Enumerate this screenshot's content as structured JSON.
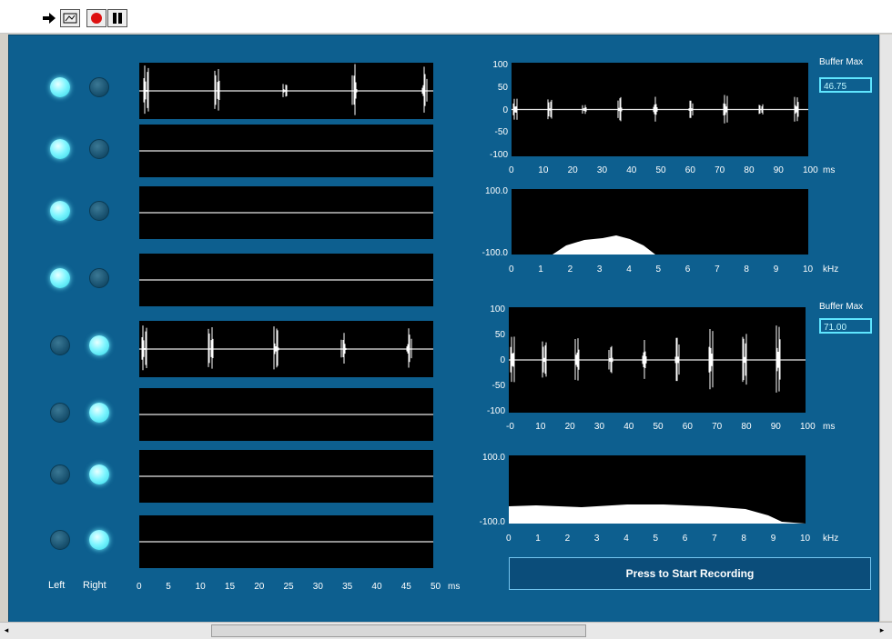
{
  "toolbar": {
    "icons": [
      "run-arrow-icon",
      "image-icon",
      "record-icon",
      "pause-icon"
    ]
  },
  "channels": {
    "left_label": "Left",
    "right_label": "Right",
    "rows": [
      {
        "left_on": true,
        "right_on": false,
        "signal": true
      },
      {
        "left_on": true,
        "right_on": false,
        "signal": false
      },
      {
        "left_on": true,
        "right_on": false,
        "signal": false
      },
      {
        "left_on": true,
        "right_on": false,
        "signal": false
      },
      {
        "left_on": false,
        "right_on": true,
        "signal": true
      },
      {
        "left_on": false,
        "right_on": true,
        "signal": false
      },
      {
        "left_on": false,
        "right_on": true,
        "signal": false
      },
      {
        "left_on": false,
        "right_on": true,
        "signal": false
      }
    ],
    "x_ticks": [
      "0",
      "5",
      "10",
      "15",
      "20",
      "25",
      "30",
      "35",
      "40",
      "45",
      "50"
    ],
    "x_unit": "ms"
  },
  "upper": {
    "buffer_label": "Buffer Max",
    "buffer_value": "46.75",
    "wave_y_ticks": [
      "100",
      "50",
      "0",
      "-50",
      "-100"
    ],
    "wave_x_ticks": [
      "0",
      "10",
      "20",
      "30",
      "40",
      "50",
      "60",
      "70",
      "80",
      "90",
      "100"
    ],
    "wave_x_unit": "ms",
    "spec_y_top": "100.0",
    "spec_y_bottom": "-100.0",
    "spec_x_ticks": [
      "0",
      "1",
      "2",
      "3",
      "4",
      "5",
      "6",
      "7",
      "8",
      "9",
      "10"
    ],
    "spec_x_unit": "kHz"
  },
  "lower": {
    "buffer_label": "Buffer Max",
    "buffer_value": "71.00",
    "wave_y_ticks": [
      "100",
      "50",
      "0",
      "-50",
      "-100"
    ],
    "wave_x_ticks": [
      "-0",
      "10",
      "20",
      "30",
      "40",
      "50",
      "60",
      "70",
      "80",
      "90",
      "100"
    ],
    "wave_x_unit": "ms",
    "spec_y_top": "100.0",
    "spec_y_bottom": "-100.0",
    "spec_x_ticks": [
      "0",
      "1",
      "2",
      "3",
      "4",
      "5",
      "6",
      "7",
      "8",
      "9",
      "10"
    ],
    "spec_x_unit": "kHz"
  },
  "start_button_label": "Press to Start Recording"
}
